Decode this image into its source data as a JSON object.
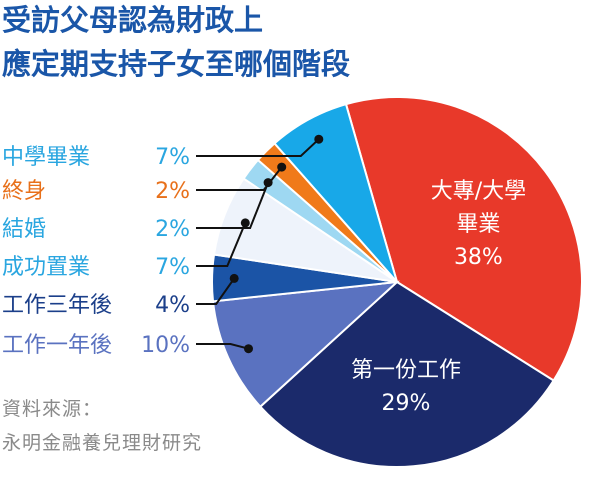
{
  "title_lines": [
    "受訪父母認為財政上",
    "應定期支持子女至哪個階段"
  ],
  "source_lines": [
    "資料來源：",
    "永明金融養兒理財研究"
  ],
  "chart_data": {
    "type": "pie",
    "title": "受訪父母認為財政上應定期支持子女至哪個階段",
    "slices": [
      {
        "label": "大專/大學畢業",
        "label_lines": [
          "大專/大學",
          "畢業"
        ],
        "value": 38,
        "value_label": "38%",
        "color": "#e8392a",
        "label_color": "#ffffff",
        "label_position": "inside"
      },
      {
        "label": "第一份工作",
        "label_lines": [
          "第一份工作"
        ],
        "value": 29,
        "value_label": "29%",
        "color": "#1b2a6b",
        "label_color": "#ffffff",
        "label_position": "inside"
      },
      {
        "label": "工作一年後",
        "value": 10,
        "value_label": "10%",
        "color": "#5a72c0",
        "label_color": "#5a72c0",
        "label_position": "legend-left"
      },
      {
        "label": "工作三年後",
        "value": 4,
        "value_label": "4%",
        "color": "#1b54a6",
        "label_color": "#1b3f8a",
        "label_position": "legend-left"
      },
      {
        "label": "成功置業",
        "value": 7,
        "value_label": "7%",
        "color": "#eef3fb",
        "label_color": "#2aa6e0",
        "label_position": "legend-left"
      },
      {
        "label": "結婚",
        "value": 2,
        "value_label": "2%",
        "color": "#9ed8f2",
        "label_color": "#2aa6e0",
        "label_position": "legend-left"
      },
      {
        "label": "終身",
        "value": 2,
        "value_label": "2%",
        "color": "#f07a1a",
        "label_color": "#e8701a",
        "label_position": "legend-left"
      },
      {
        "label": "中學畢業",
        "value": 7,
        "value_label": "7%",
        "color": "#18a8e8",
        "label_color": "#2aa6e0",
        "label_position": "legend-left"
      }
    ]
  }
}
